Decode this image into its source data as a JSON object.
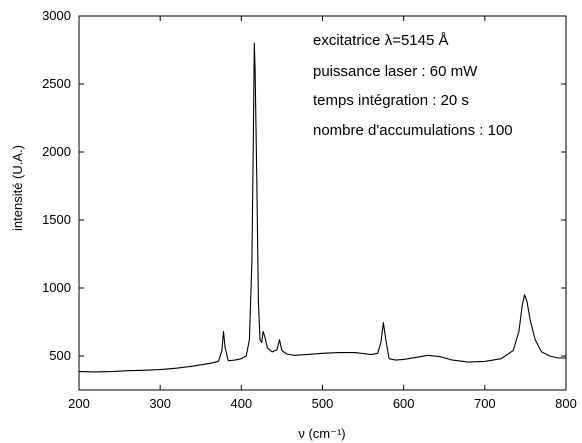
{
  "chart_data": {
    "type": "line",
    "xlabel": "ν (cm⁻¹)",
    "ylabel": "intensité (U.A.)",
    "xlim": [
      200,
      800
    ],
    "ylim": [
      250,
      3000
    ],
    "xticks": [
      200,
      300,
      400,
      500,
      600,
      700,
      800
    ],
    "yticks": [
      500,
      1000,
      1500,
      2000,
      2500,
      3000
    ],
    "grid": false,
    "annotations": [
      "excitatrice λ=5145 Å",
      "puissance laser  : 60 mW",
      "temps intégration : 20 s",
      "nombre d'accumulations : 100"
    ],
    "series": [
      {
        "color": "#000000",
        "points": [
          [
            200,
            385
          ],
          [
            220,
            383
          ],
          [
            240,
            385
          ],
          [
            260,
            392
          ],
          [
            280,
            395
          ],
          [
            300,
            400
          ],
          [
            320,
            410
          ],
          [
            340,
            425
          ],
          [
            355,
            440
          ],
          [
            365,
            450
          ],
          [
            372,
            462
          ],
          [
            376,
            540
          ],
          [
            378,
            680
          ],
          [
            380,
            560
          ],
          [
            384,
            465
          ],
          [
            392,
            470
          ],
          [
            400,
            480
          ],
          [
            406,
            500
          ],
          [
            410,
            620
          ],
          [
            413,
            1200
          ],
          [
            415,
            2200
          ],
          [
            416,
            2800
          ],
          [
            417,
            2600
          ],
          [
            419,
            1800
          ],
          [
            421,
            900
          ],
          [
            423,
            620
          ],
          [
            425,
            600
          ],
          [
            427,
            680
          ],
          [
            429,
            640
          ],
          [
            432,
            560
          ],
          [
            438,
            530
          ],
          [
            444,
            545
          ],
          [
            447,
            620
          ],
          [
            450,
            540
          ],
          [
            456,
            515
          ],
          [
            465,
            505
          ],
          [
            480,
            510
          ],
          [
            500,
            520
          ],
          [
            520,
            525
          ],
          [
            540,
            525
          ],
          [
            560,
            510
          ],
          [
            568,
            520
          ],
          [
            572,
            600
          ],
          [
            575,
            745
          ],
          [
            578,
            620
          ],
          [
            582,
            480
          ],
          [
            590,
            470
          ],
          [
            600,
            475
          ],
          [
            615,
            490
          ],
          [
            630,
            505
          ],
          [
            645,
            495
          ],
          [
            660,
            470
          ],
          [
            680,
            455
          ],
          [
            700,
            460
          ],
          [
            720,
            480
          ],
          [
            735,
            540
          ],
          [
            742,
            680
          ],
          [
            746,
            870
          ],
          [
            749,
            950
          ],
          [
            752,
            900
          ],
          [
            756,
            760
          ],
          [
            762,
            620
          ],
          [
            770,
            530
          ],
          [
            780,
            500
          ],
          [
            790,
            485
          ],
          [
            800,
            485
          ]
        ]
      }
    ]
  }
}
